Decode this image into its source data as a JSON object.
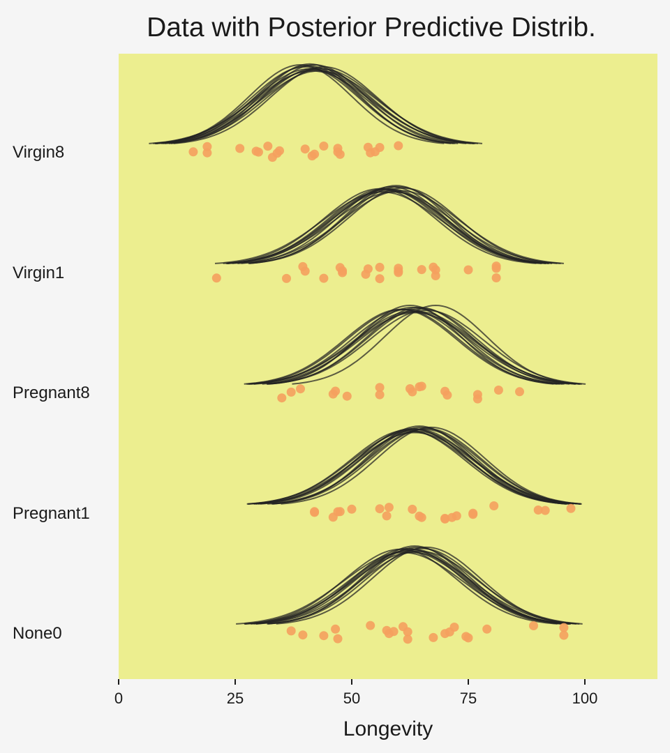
{
  "chart_data": {
    "type": "scatter",
    "title": "Data with Posterior Predictive Distrib.",
    "xlabel": "Longevity",
    "ylabel": "",
    "xlim": [
      0,
      115
    ],
    "xticks": [
      "0",
      "25",
      "50",
      "75",
      "100"
    ],
    "xtick_values": [
      0,
      25,
      50,
      75,
      100
    ],
    "categories": [
      "Virgin8",
      "Virgin1",
      "Pregnant8",
      "Pregnant1",
      "None0"
    ],
    "grid": false,
    "legend": "none",
    "colors": {
      "plot_bg": "#ecee8f",
      "page_bg": "#f5f5f5",
      "points": "#f5a05e",
      "curves": "#222222"
    },
    "series": [
      {
        "group": "Virgin8",
        "points": [
          16,
          19,
          19,
          26,
          29.5,
          30,
          32,
          33,
          34,
          34.5,
          40,
          41.5,
          42,
          44,
          47,
          47,
          47.5,
          53.5,
          54,
          55,
          56,
          60
        ],
        "curves": [
          {
            "mu": 40,
            "sigma": 11.5
          },
          {
            "mu": 41,
            "sigma": 12
          },
          {
            "mu": 42,
            "sigma": 11
          },
          {
            "mu": 43,
            "sigma": 12.5
          },
          {
            "mu": 39,
            "sigma": 11
          },
          {
            "mu": 44,
            "sigma": 11.5
          },
          {
            "mu": 41.5,
            "sigma": 12.5
          },
          {
            "mu": 42.5,
            "sigma": 11.8
          },
          {
            "mu": 40.5,
            "sigma": 11.2
          },
          {
            "mu": 43.5,
            "sigma": 12
          },
          {
            "mu": 41,
            "sigma": 10.8
          },
          {
            "mu": 42,
            "sigma": 12.2
          }
        ]
      },
      {
        "group": "Virgin1",
        "points": [
          21,
          36,
          39.5,
          40,
          44,
          47.5,
          48,
          48,
          53,
          53.5,
          56,
          56,
          60,
          60,
          60,
          65,
          67.5,
          68,
          68,
          75,
          81,
          81,
          81
        ],
        "curves": [
          {
            "mu": 57,
            "sigma": 12
          },
          {
            "mu": 58,
            "sigma": 12.5
          },
          {
            "mu": 60,
            "sigma": 11.5
          },
          {
            "mu": 56,
            "sigma": 12
          },
          {
            "mu": 59,
            "sigma": 12.8
          },
          {
            "mu": 61,
            "sigma": 11.8
          },
          {
            "mu": 57.5,
            "sigma": 12.2
          },
          {
            "mu": 58.5,
            "sigma": 11.5
          },
          {
            "mu": 60.5,
            "sigma": 12.5
          },
          {
            "mu": 56.5,
            "sigma": 12.8
          },
          {
            "mu": 59.5,
            "sigma": 11.2
          },
          {
            "mu": 58,
            "sigma": 12
          }
        ]
      },
      {
        "group": "Pregnant8",
        "points": [
          35,
          37,
          39,
          46,
          46.5,
          49,
          56,
          56,
          62.5,
          63,
          64.5,
          65,
          70,
          70.5,
          77,
          77,
          81.5,
          86
        ],
        "curves": [
          {
            "mu": 62,
            "sigma": 12
          },
          {
            "mu": 63,
            "sigma": 11.5
          },
          {
            "mu": 64,
            "sigma": 12.5
          },
          {
            "mu": 61,
            "sigma": 12
          },
          {
            "mu": 65,
            "sigma": 11.8
          },
          {
            "mu": 66,
            "sigma": 12.2
          },
          {
            "mu": 62.5,
            "sigma": 11
          },
          {
            "mu": 63.5,
            "sigma": 12.8
          },
          {
            "mu": 64.5,
            "sigma": 11.5
          },
          {
            "mu": 60.5,
            "sigma": 12
          },
          {
            "mu": 68,
            "sigma": 11
          },
          {
            "mu": 63,
            "sigma": 12.5
          }
        ]
      },
      {
        "group": "Pregnant1",
        "points": [
          42,
          42,
          46,
          47,
          47.5,
          50,
          56,
          57.5,
          58,
          63,
          64.5,
          65,
          70,
          70,
          71.5,
          72.5,
          76,
          76,
          80.5,
          90,
          91.5,
          97
        ],
        "curves": [
          {
            "mu": 63,
            "sigma": 12
          },
          {
            "mu": 64,
            "sigma": 12.5
          },
          {
            "mu": 65,
            "sigma": 11.5
          },
          {
            "mu": 62,
            "sigma": 12.2
          },
          {
            "mu": 66,
            "sigma": 11.8
          },
          {
            "mu": 63.5,
            "sigma": 12.8
          },
          {
            "mu": 64.5,
            "sigma": 11.2
          },
          {
            "mu": 65.5,
            "sigma": 12
          },
          {
            "mu": 62.5,
            "sigma": 12.5
          },
          {
            "mu": 67,
            "sigma": 11.5
          },
          {
            "mu": 64,
            "sigma": 12
          },
          {
            "mu": 63,
            "sigma": 11.8
          }
        ]
      },
      {
        "group": "None0",
        "points": [
          37,
          39.5,
          44,
          46.5,
          47,
          54,
          57.5,
          58,
          59,
          61,
          62,
          62,
          67.5,
          70,
          71,
          72,
          74.5,
          75,
          79,
          89,
          95.5,
          95.5
        ],
        "curves": [
          {
            "mu": 62,
            "sigma": 12.5
          },
          {
            "mu": 63,
            "sigma": 12
          },
          {
            "mu": 64,
            "sigma": 11.5
          },
          {
            "mu": 61,
            "sigma": 12.8
          },
          {
            "mu": 65,
            "sigma": 11.8
          },
          {
            "mu": 62.5,
            "sigma": 12.2
          },
          {
            "mu": 63.5,
            "sigma": 11.2
          },
          {
            "mu": 64.5,
            "sigma": 12.5
          },
          {
            "mu": 60.5,
            "sigma": 12
          },
          {
            "mu": 66,
            "sigma": 11.5
          },
          {
            "mu": 63,
            "sigma": 12.8
          },
          {
            "mu": 62,
            "sigma": 11.8
          }
        ]
      }
    ]
  }
}
